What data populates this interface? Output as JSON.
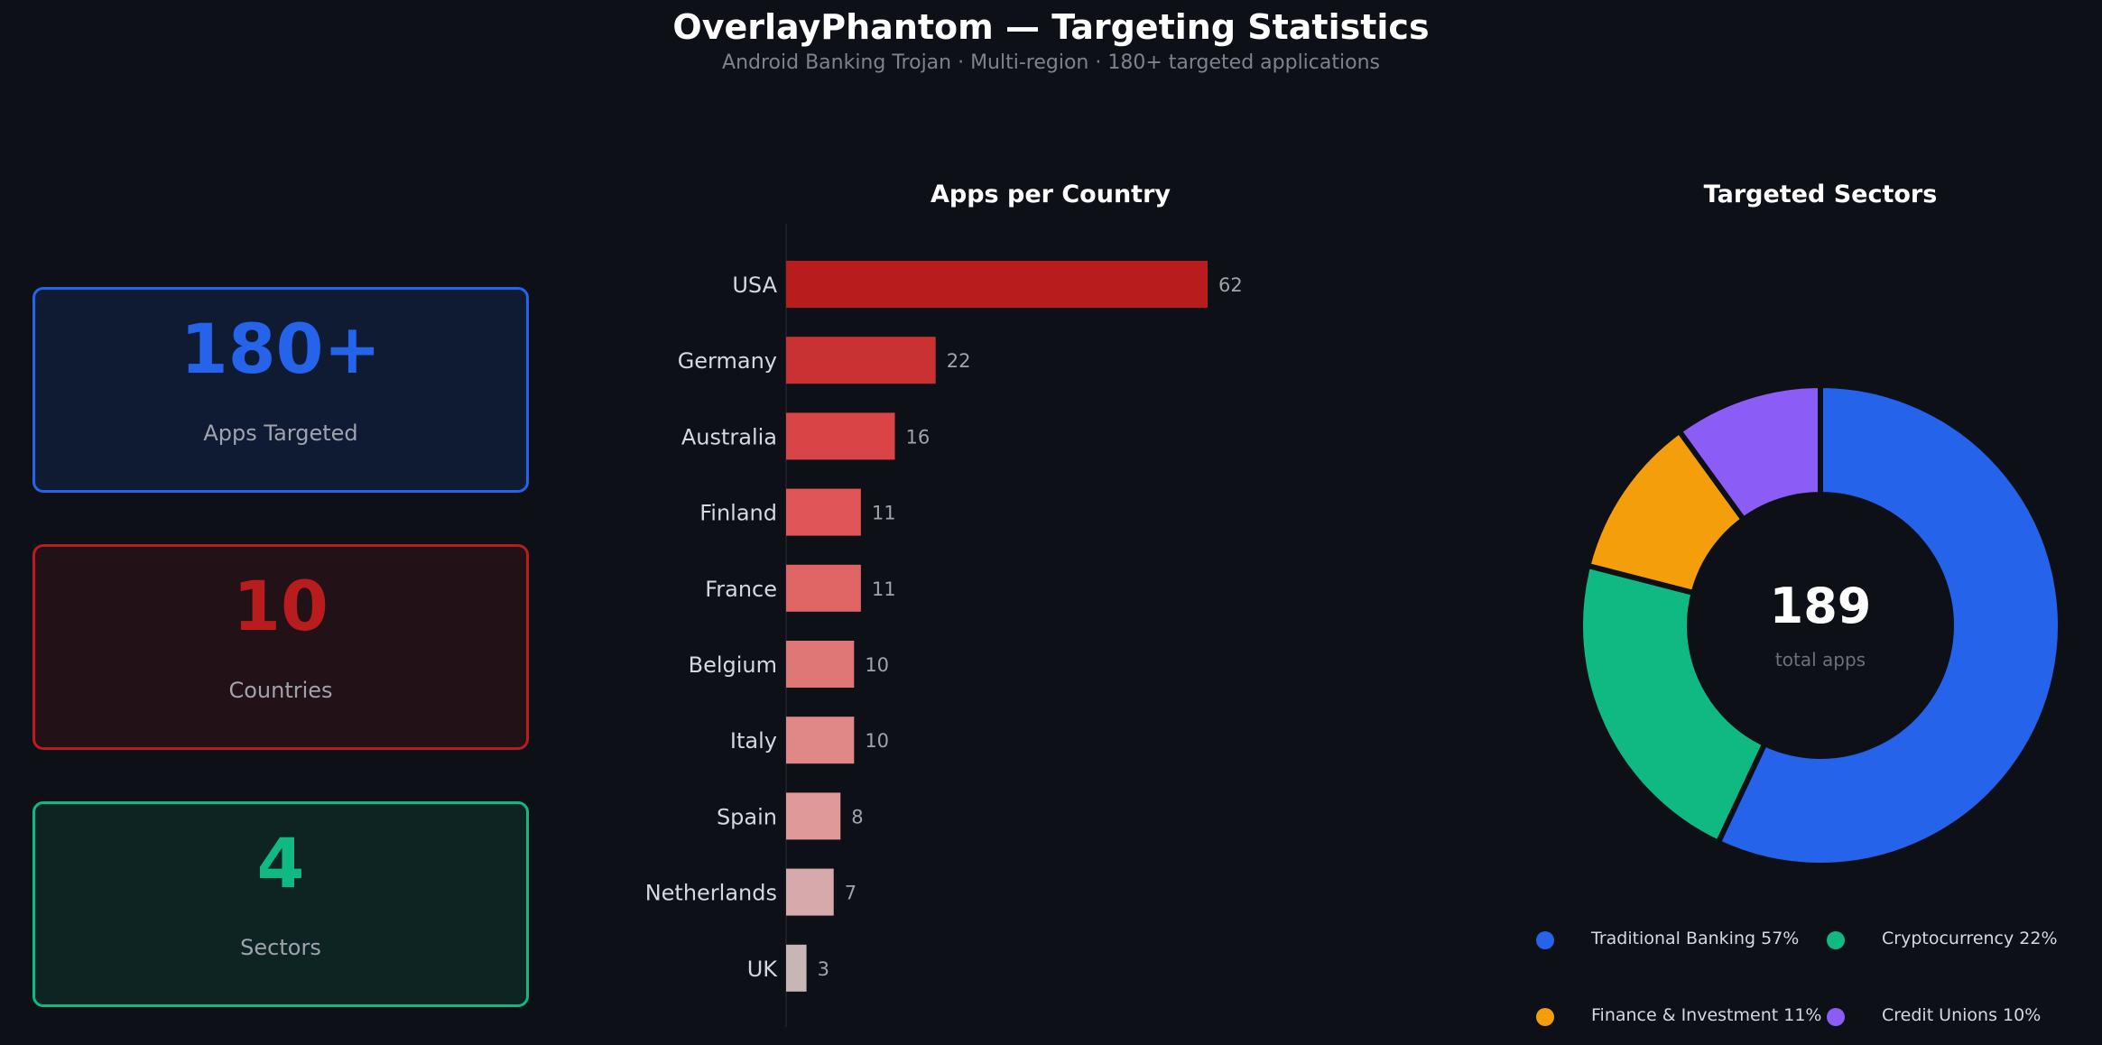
{
  "title": "OverlayPhantom — Targeting Statistics",
  "subtitle": "Android Banking Trojan  ·  Multi-region  ·  180+ targeted applications",
  "cards": [
    {
      "value": "180+",
      "label": "Apps Targeted",
      "color": "#2563eb"
    },
    {
      "value": "10",
      "label": "Countries",
      "color": "#b91c1c"
    },
    {
      "value": "4",
      "label": "Sectors",
      "color": "#10b981"
    }
  ],
  "chart_data": [
    {
      "type": "bar",
      "orientation": "horizontal",
      "title": "Apps per Country",
      "categories": [
        "USA",
        "Germany",
        "Australia",
        "Finland",
        "France",
        "Belgium",
        "Italy",
        "Spain",
        "Netherlands",
        "UK"
      ],
      "values": [
        62,
        22,
        16,
        11,
        11,
        10,
        10,
        8,
        7,
        3
      ],
      "colors": [
        "#b91c1c",
        "#c93132",
        "#d94446",
        "#e05555",
        "#e06666",
        "#e07777",
        "#e08888",
        "#e09999",
        "#d6aaaa",
        "#c8b5b5"
      ],
      "xlim": [
        0,
        62
      ],
      "grid": false
    },
    {
      "type": "pie",
      "variant": "donut",
      "title": "Targeted Sectors",
      "center_value": "189",
      "center_label": "total apps",
      "slices": [
        {
          "name": "Traditional Banking",
          "value": 57,
          "label": "Traditional Banking  57%",
          "color": "#2563eb"
        },
        {
          "name": "Cryptocurrency",
          "value": 22,
          "label": "Cryptocurrency  22%",
          "color": "#10b981"
        },
        {
          "name": "Finance & Investment",
          "value": 11,
          "label": "Finance & Investment  11%",
          "color": "#f59e0b"
        },
        {
          "name": "Credit Unions",
          "value": 10,
          "label": "Credit Unions  10%",
          "color": "#8b5cf6"
        }
      ],
      "legend_position": "bottom"
    }
  ]
}
